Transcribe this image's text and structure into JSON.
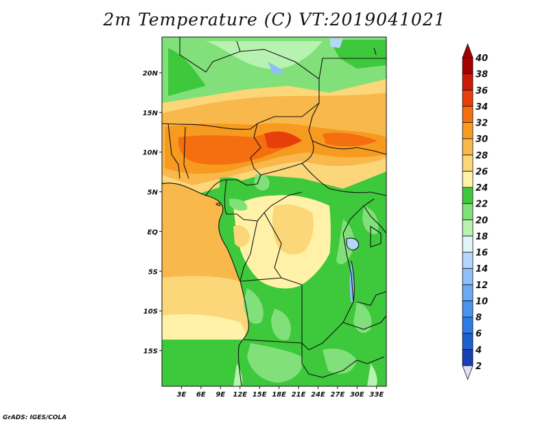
{
  "title": "2m Temperature (C) VT:2019041021",
  "credit": "GrADS: IGES/COLA",
  "map": {
    "lat_labels": [
      "20N",
      "15N",
      "10N",
      "5N",
      "EQ",
      "5S",
      "10S",
      "15S"
    ],
    "lon_labels": [
      "3E",
      "6E",
      "9E",
      "12E",
      "15E",
      "18E",
      "21E",
      "24E",
      "27E",
      "30E",
      "33E"
    ],
    "lat_range": [
      -19.5,
      24.5
    ],
    "lon_range": [
      0,
      34.5
    ]
  },
  "colorbar": {
    "labels": [
      "2",
      "4",
      "6",
      "8",
      "10",
      "12",
      "14",
      "16",
      "18",
      "20",
      "22",
      "24",
      "26",
      "28",
      "30",
      "32",
      "34",
      "36",
      "38",
      "40"
    ],
    "colors": [
      "#1a1a80",
      "#1a3fb0",
      "#1e5fd0",
      "#2e7ae6",
      "#4a92f0",
      "#6aaaf5",
      "#8ec0f8",
      "#b4d6fa",
      "#e0f4fc",
      "#b8f2b0",
      "#82e07a",
      "#3ec83c",
      "#fff2a8",
      "#fcd77a",
      "#f8b84c",
      "#f79a20",
      "#f56e0f",
      "#e83e0a",
      "#cc1a08",
      "#a50000"
    ],
    "under_color": "#e0e0fa",
    "over_color": "#a50000"
  }
}
